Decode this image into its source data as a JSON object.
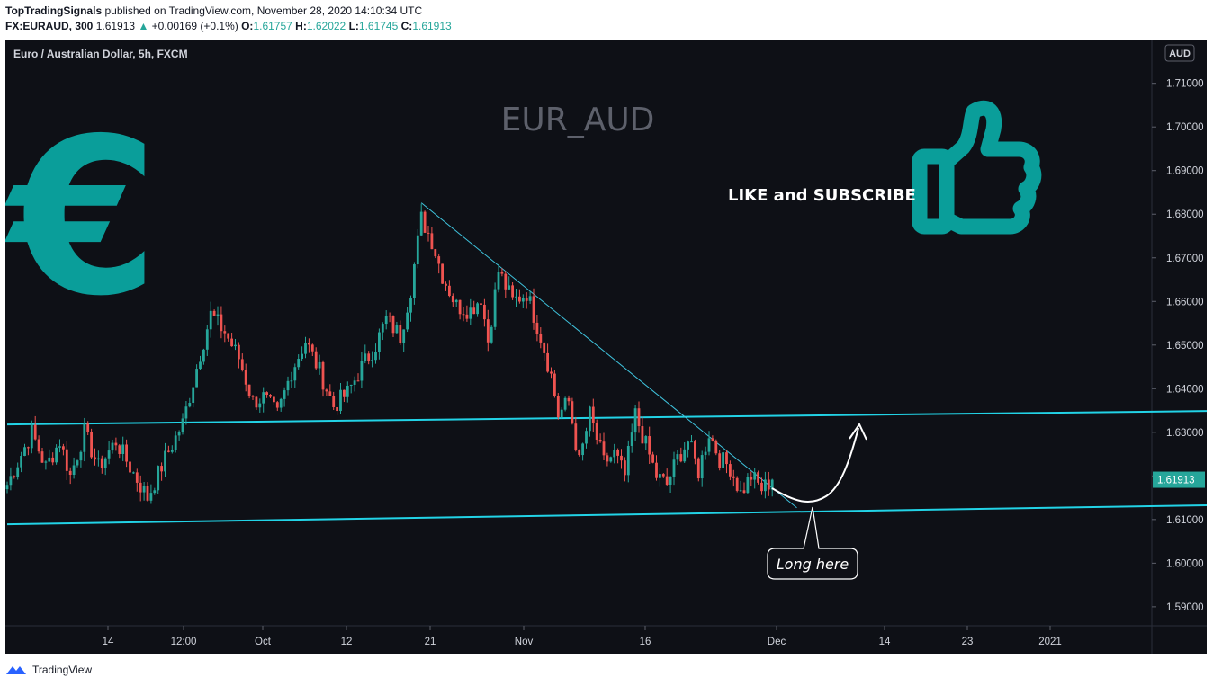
{
  "header": {
    "publisher": "TopTradingSignals",
    "published_text": "published on TradingView.com, November 28, 2020 14:10:34 UTC",
    "symbol": "FX:EURAUD, 300",
    "last": "1.61913",
    "change": "+0.00169 (+0.1%)",
    "o_label": "O:",
    "o_value": "1.61757",
    "h_label": "H:",
    "h_value": "1.62022",
    "l_label": "L:",
    "l_value": "1.61745",
    "c_label": "C:",
    "c_value": "1.61913"
  },
  "pane": {
    "title": "Euro / Australian Dollar, 5h, FXCM",
    "watermark": "EUR_AUD",
    "currency_badge": "AUD",
    "price_label": "1.61913",
    "promo": "LIKE and SUBSCRIBE",
    "callout": "Long here"
  },
  "footer": {
    "brand": "TradingView"
  },
  "colors": {
    "background": "#0e1016",
    "up_candle": "#26a69a",
    "down_candle": "#ef5350",
    "channel": "#22d3e6",
    "trendline": "#3fc3dd",
    "icon": "#0a9e9a",
    "price_badge": "#26a69a"
  },
  "icons": [
    "euro-icon",
    "thumbs-up-icon",
    "tradingview-logo-icon"
  ],
  "chart_data": {
    "type": "candlestick",
    "title": "Euro / Australian Dollar, 5h, FXCM",
    "watermark": "EUR_AUD",
    "ylim": [
      1.5875,
      1.7188
    ],
    "y_ticks": [
      "1.71000",
      "1.70000",
      "1.69000",
      "1.68000",
      "1.67000",
      "1.66000",
      "1.65000",
      "1.64000",
      "1.63000",
      "1.62000",
      "1.61000",
      "1.60000",
      "1.59000"
    ],
    "x_ticks": [
      "14",
      "12:00",
      "Oct",
      "12",
      "21",
      "Nov",
      "16",
      "Dec",
      "14",
      "23",
      "2021"
    ],
    "close_path": [
      {
        "t": 0,
        "p": 1.618
      },
      {
        "t": 7,
        "p": 1.63
      },
      {
        "t": 11,
        "p": 1.622
      },
      {
        "t": 15,
        "p": 1.628
      },
      {
        "t": 18,
        "p": 1.62
      },
      {
        "t": 22,
        "p": 1.63
      },
      {
        "t": 26,
        "p": 1.622
      },
      {
        "t": 31,
        "p": 1.628
      },
      {
        "t": 35,
        "p": 1.622
      },
      {
        "t": 40,
        "p": 1.615
      },
      {
        "t": 45,
        "p": 1.624
      },
      {
        "t": 50,
        "p": 1.632
      },
      {
        "t": 55,
        "p": 1.648
      },
      {
        "t": 58,
        "p": 1.657
      },
      {
        "t": 62,
        "p": 1.653
      },
      {
        "t": 66,
        "p": 1.647
      },
      {
        "t": 70,
        "p": 1.637
      },
      {
        "t": 73,
        "p": 1.638
      },
      {
        "t": 77,
        "p": 1.634
      },
      {
        "t": 81,
        "p": 1.644
      },
      {
        "t": 85,
        "p": 1.651
      },
      {
        "t": 89,
        "p": 1.644
      },
      {
        "t": 93,
        "p": 1.636
      },
      {
        "t": 97,
        "p": 1.639
      },
      {
        "t": 101,
        "p": 1.645
      },
      {
        "t": 105,
        "p": 1.65
      },
      {
        "t": 108,
        "p": 1.656
      },
      {
        "t": 112,
        "p": 1.652
      },
      {
        "t": 115,
        "p": 1.663
      },
      {
        "t": 118,
        "p": 1.679
      },
      {
        "t": 121,
        "p": 1.674
      },
      {
        "t": 124,
        "p": 1.666
      },
      {
        "t": 128,
        "p": 1.659
      },
      {
        "t": 132,
        "p": 1.658
      },
      {
        "t": 135,
        "p": 1.661
      },
      {
        "t": 137,
        "p": 1.651
      },
      {
        "t": 140,
        "p": 1.667
      },
      {
        "t": 144,
        "p": 1.66
      },
      {
        "t": 148,
        "p": 1.662
      },
      {
        "t": 152,
        "p": 1.652
      },
      {
        "t": 155,
        "p": 1.643
      },
      {
        "t": 157,
        "p": 1.634
      },
      {
        "t": 160,
        "p": 1.637
      },
      {
        "t": 163,
        "p": 1.623
      },
      {
        "t": 166,
        "p": 1.634
      },
      {
        "t": 170,
        "p": 1.623
      },
      {
        "t": 173,
        "p": 1.625
      },
      {
        "t": 176,
        "p": 1.62
      },
      {
        "t": 179,
        "p": 1.634
      },
      {
        "t": 182,
        "p": 1.627
      },
      {
        "t": 185,
        "p": 1.62
      },
      {
        "t": 188,
        "p": 1.618
      },
      {
        "t": 191,
        "p": 1.624
      },
      {
        "t": 194,
        "p": 1.628
      },
      {
        "t": 197,
        "p": 1.621
      },
      {
        "t": 200,
        "p": 1.63
      },
      {
        "t": 203,
        "p": 1.624
      },
      {
        "t": 206,
        "p": 1.622
      },
      {
        "t": 209,
        "p": 1.616
      },
      {
        "t": 212,
        "p": 1.62
      },
      {
        "t": 215,
        "p": 1.617
      },
      {
        "t": 218,
        "p": 1.619
      }
    ],
    "last_price": 1.61913,
    "annotations": [
      {
        "type": "channel-upper",
        "from": {
          "t": 0,
          "p": 1.6318
        },
        "to": {
          "t": 345,
          "p": 1.6349
        }
      },
      {
        "type": "channel-lower",
        "from": {
          "t": 0,
          "p": 1.6089
        },
        "to": {
          "t": 345,
          "p": 1.6133
        }
      },
      {
        "type": "trendline",
        "from": {
          "t": 118,
          "p": 1.6826
        },
        "to": {
          "t": 225,
          "p": 1.6127
        }
      },
      {
        "type": "projection-arrow",
        "text": "Long here"
      }
    ]
  }
}
